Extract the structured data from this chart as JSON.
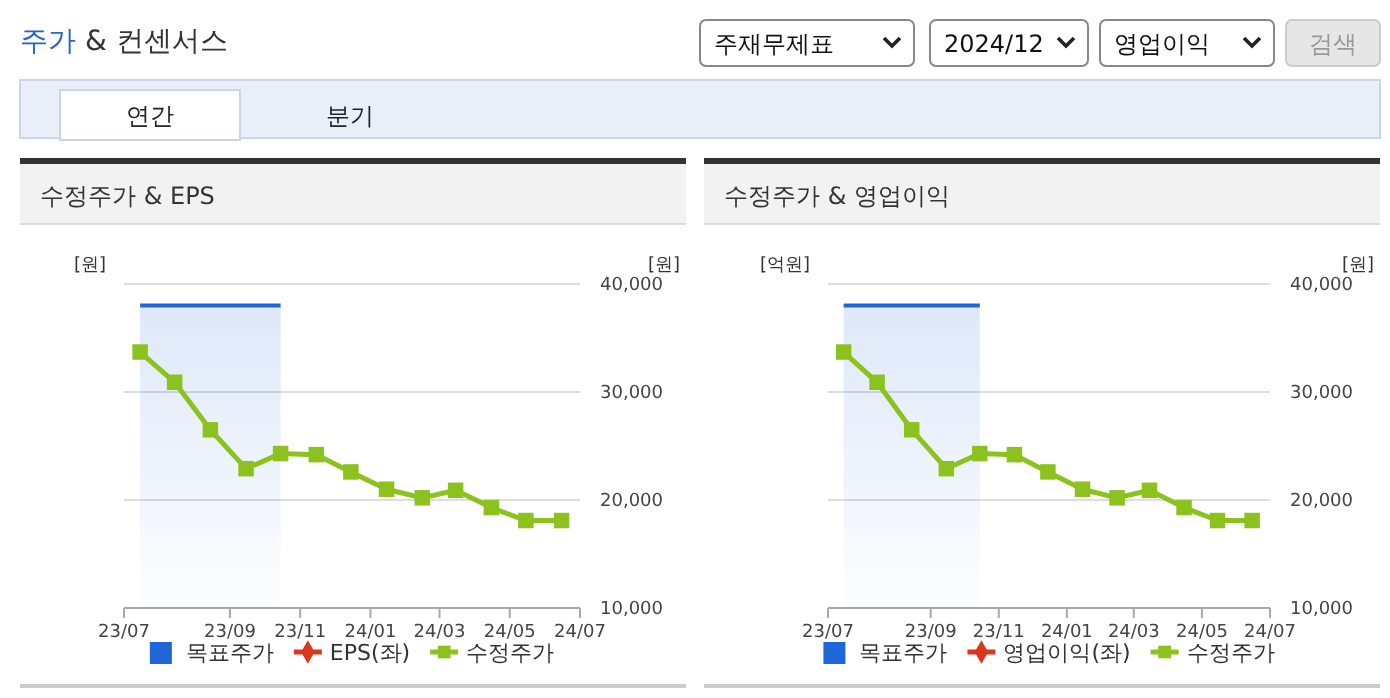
{
  "chart_data": [
    {
      "type": "other",
      "title": "주가 & 컨센서스",
      "annotations": [
        "주재무제표",
        "2024/12",
        "영업이익",
        "검색",
        "연간",
        "분기"
      ]
    },
    {
      "type": "line",
      "title": "수정주가 & EPS",
      "ylabel": "[원]",
      "annotations": [
        "[원]"
      ],
      "x": [
        "2023-06-15",
        "2023-07-15",
        "2023-08-15",
        "2023-09-15",
        "2023-10-15",
        "2023-11-15",
        "2023-12-15",
        "2024-01-15",
        "2024-02-15",
        "2024-03-15",
        "2024-04-15",
        "2024-05-15",
        "2024-06-15"
      ],
      "xlim": [
        "2023-06-01",
        "2024-07-01"
      ],
      "xticks": [
        {
          "value": "2023-06-01",
          "label": "23/07"
        },
        {
          "value": "2023-09-01",
          "label": "23/09"
        },
        {
          "value": "2023-11-01",
          "label": "23/11"
        },
        {
          "value": "2024-01-01",
          "label": "24/01"
        },
        {
          "value": "2024-03-01",
          "label": "24/03"
        },
        {
          "value": "2024-05-01",
          "label": "24/05"
        },
        {
          "value": "2024-07-01",
          "label": "24/07"
        }
      ],
      "ylim": [
        10000,
        40000
      ],
      "yticks": [
        {
          "value": 10000,
          "label": "10,000"
        },
        {
          "value": 20000,
          "label": "20,000"
        },
        {
          "value": 30000,
          "label": "30,000"
        },
        {
          "value": 40000,
          "label": "40,000"
        }
      ],
      "grid": "y",
      "legend": "bottom",
      "series": [
        {
          "name": "목표주가",
          "type": "area",
          "color": "#1f66d8",
          "values": [
            38000,
            38000,
            38000,
            38000,
            38000,
            null,
            null,
            null,
            null,
            null,
            null,
            null,
            null
          ]
        },
        {
          "name": "EPS(좌)",
          "type": "line",
          "color": "#d9381e",
          "marker": "diamond",
          "values": [
            null,
            null,
            null,
            null,
            null,
            null,
            null,
            null,
            null,
            null,
            null,
            null,
            null
          ]
        },
        {
          "name": "수정주가",
          "type": "line",
          "color": "#8cc21e",
          "marker": "square",
          "values": [
            33700,
            30900,
            26500,
            22900,
            24300,
            24200,
            22600,
            21000,
            20200,
            20900,
            19300,
            18100,
            18100
          ]
        }
      ]
    },
    {
      "type": "line",
      "title": "수정주가 & 영업이익",
      "ylabel": "[원]",
      "annotations": [
        "[억원]"
      ],
      "x": [
        "2023-06-15",
        "2023-07-15",
        "2023-08-15",
        "2023-09-15",
        "2023-10-15",
        "2023-11-15",
        "2023-12-15",
        "2024-01-15",
        "2024-02-15",
        "2024-03-15",
        "2024-04-15",
        "2024-05-15",
        "2024-06-15"
      ],
      "xlim": [
        "2023-06-01",
        "2024-07-01"
      ],
      "xticks": [
        {
          "value": "2023-06-01",
          "label": "23/07"
        },
        {
          "value": "2023-09-01",
          "label": "23/09"
        },
        {
          "value": "2023-11-01",
          "label": "23/11"
        },
        {
          "value": "2024-01-01",
          "label": "24/01"
        },
        {
          "value": "2024-03-01",
          "label": "24/03"
        },
        {
          "value": "2024-05-01",
          "label": "24/05"
        },
        {
          "value": "2024-07-01",
          "label": "24/07"
        }
      ],
      "ylim": [
        10000,
        40000
      ],
      "yticks": [
        {
          "value": 10000,
          "label": "10,000"
        },
        {
          "value": 20000,
          "label": "20,000"
        },
        {
          "value": 30000,
          "label": "30,000"
        },
        {
          "value": 40000,
          "label": "40,000"
        }
      ],
      "grid": "y",
      "legend": "bottom",
      "series": [
        {
          "name": "목표주가",
          "type": "area",
          "color": "#1f66d8",
          "values": [
            38000,
            38000,
            38000,
            38000,
            38000,
            null,
            null,
            null,
            null,
            null,
            null,
            null,
            null
          ]
        },
        {
          "name": "영업이익(좌)",
          "type": "line",
          "color": "#d9381e",
          "marker": "diamond",
          "values": [
            null,
            null,
            null,
            null,
            null,
            null,
            null,
            null,
            null,
            null,
            null,
            null,
            null
          ]
        },
        {
          "name": "수정주가",
          "type": "line",
          "color": "#8cc21e",
          "marker": "square",
          "values": [
            33700,
            30900,
            26500,
            22900,
            24300,
            24200,
            22600,
            21000,
            20200,
            20900,
            19300,
            18100,
            18100
          ]
        }
      ]
    }
  ]
}
